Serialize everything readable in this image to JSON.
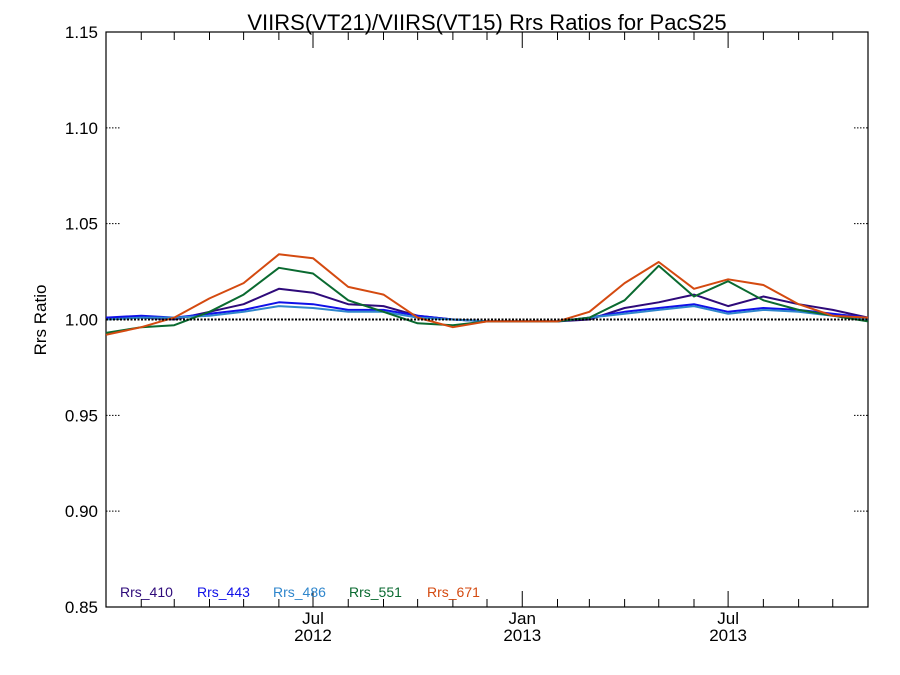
{
  "chart_data": {
    "type": "line",
    "title": "VIIRS(VT21)/VIIRS(VT15)  Rrs Ratios for PacS25",
    "xlabel": "",
    "ylabel": "Rrs Ratio",
    "ylim": [
      0.85,
      1.15
    ],
    "yticks": [
      "0.85",
      "0.90",
      "0.95",
      "1.00",
      "1.05",
      "1.10",
      "1.15"
    ],
    "xlim": [
      "2012-01-01",
      "2013-11-01"
    ],
    "xticks": [
      {
        "date": "2012-07-01",
        "line1": "Jul",
        "line2": "2012"
      },
      {
        "date": "2013-01-01",
        "line1": "Jan",
        "line2": "2013"
      },
      {
        "date": "2013-07-01",
        "line1": "Jul",
        "line2": "2013"
      }
    ],
    "minor_xticks": [
      "2012-02-01",
      "2012-03-01",
      "2012-04-01",
      "2012-05-01",
      "2012-06-01",
      "2012-08-01",
      "2012-09-01",
      "2012-10-01",
      "2012-11-01",
      "2012-12-01",
      "2013-02-01",
      "2013-03-01",
      "2013-04-01",
      "2013-05-01",
      "2013-06-01",
      "2013-08-01",
      "2013-09-01",
      "2013-10-01"
    ],
    "reference_line": 1.0,
    "legend_position": "bottom-left",
    "x": [
      "2012-01-01",
      "2012-02-01",
      "2012-03-01",
      "2012-04-01",
      "2012-05-01",
      "2012-06-01",
      "2012-07-01",
      "2012-08-01",
      "2012-09-01",
      "2012-10-01",
      "2012-11-01",
      "2012-12-01",
      "2013-01-01",
      "2013-02-01",
      "2013-03-01",
      "2013-04-01",
      "2013-05-01",
      "2013-06-01",
      "2013-07-01",
      "2013-08-01",
      "2013-09-01",
      "2013-10-01",
      "2013-11-01"
    ],
    "series": [
      {
        "name": "Rrs_410",
        "color": "#2e0a7a",
        "values": [
          1.001,
          1.001,
          1.0,
          1.004,
          1.008,
          1.016,
          1.014,
          1.008,
          1.007,
          1.002,
          1.0,
          0.999,
          0.999,
          0.999,
          1.0,
          1.006,
          1.009,
          1.013,
          1.007,
          1.012,
          1.008,
          1.005,
          1.001
        ]
      },
      {
        "name": "Rrs_443",
        "color": "#1010e8",
        "values": [
          1.001,
          1.002,
          1.001,
          1.003,
          1.005,
          1.009,
          1.008,
          1.005,
          1.005,
          1.002,
          1.0,
          0.999,
          0.999,
          0.999,
          1.001,
          1.004,
          1.006,
          1.008,
          1.004,
          1.006,
          1.005,
          1.003,
          1.001
        ]
      },
      {
        "name": "Rrs_486",
        "color": "#2f86cc",
        "values": [
          1.0,
          1.001,
          1.001,
          1.002,
          1.004,
          1.007,
          1.006,
          1.004,
          1.004,
          1.001,
          1.0,
          0.999,
          0.999,
          0.999,
          1.001,
          1.003,
          1.005,
          1.007,
          1.003,
          1.005,
          1.004,
          1.002,
          1.0
        ]
      },
      {
        "name": "Rrs_551",
        "color": "#0a6a30",
        "values": [
          0.993,
          0.996,
          0.997,
          1.004,
          1.013,
          1.027,
          1.024,
          1.01,
          1.004,
          0.998,
          0.997,
          0.999,
          0.999,
          0.999,
          1.001,
          1.01,
          1.028,
          1.012,
          1.02,
          1.01,
          1.005,
          1.002,
          0.999
        ]
      },
      {
        "name": "Rrs_671",
        "color": "#d44a10",
        "values": [
          0.992,
          0.996,
          1.001,
          1.011,
          1.019,
          1.034,
          1.032,
          1.017,
          1.013,
          1.001,
          0.996,
          0.999,
          0.999,
          0.999,
          1.004,
          1.019,
          1.03,
          1.016,
          1.021,
          1.018,
          1.008,
          1.002,
          1.001
        ]
      }
    ]
  }
}
